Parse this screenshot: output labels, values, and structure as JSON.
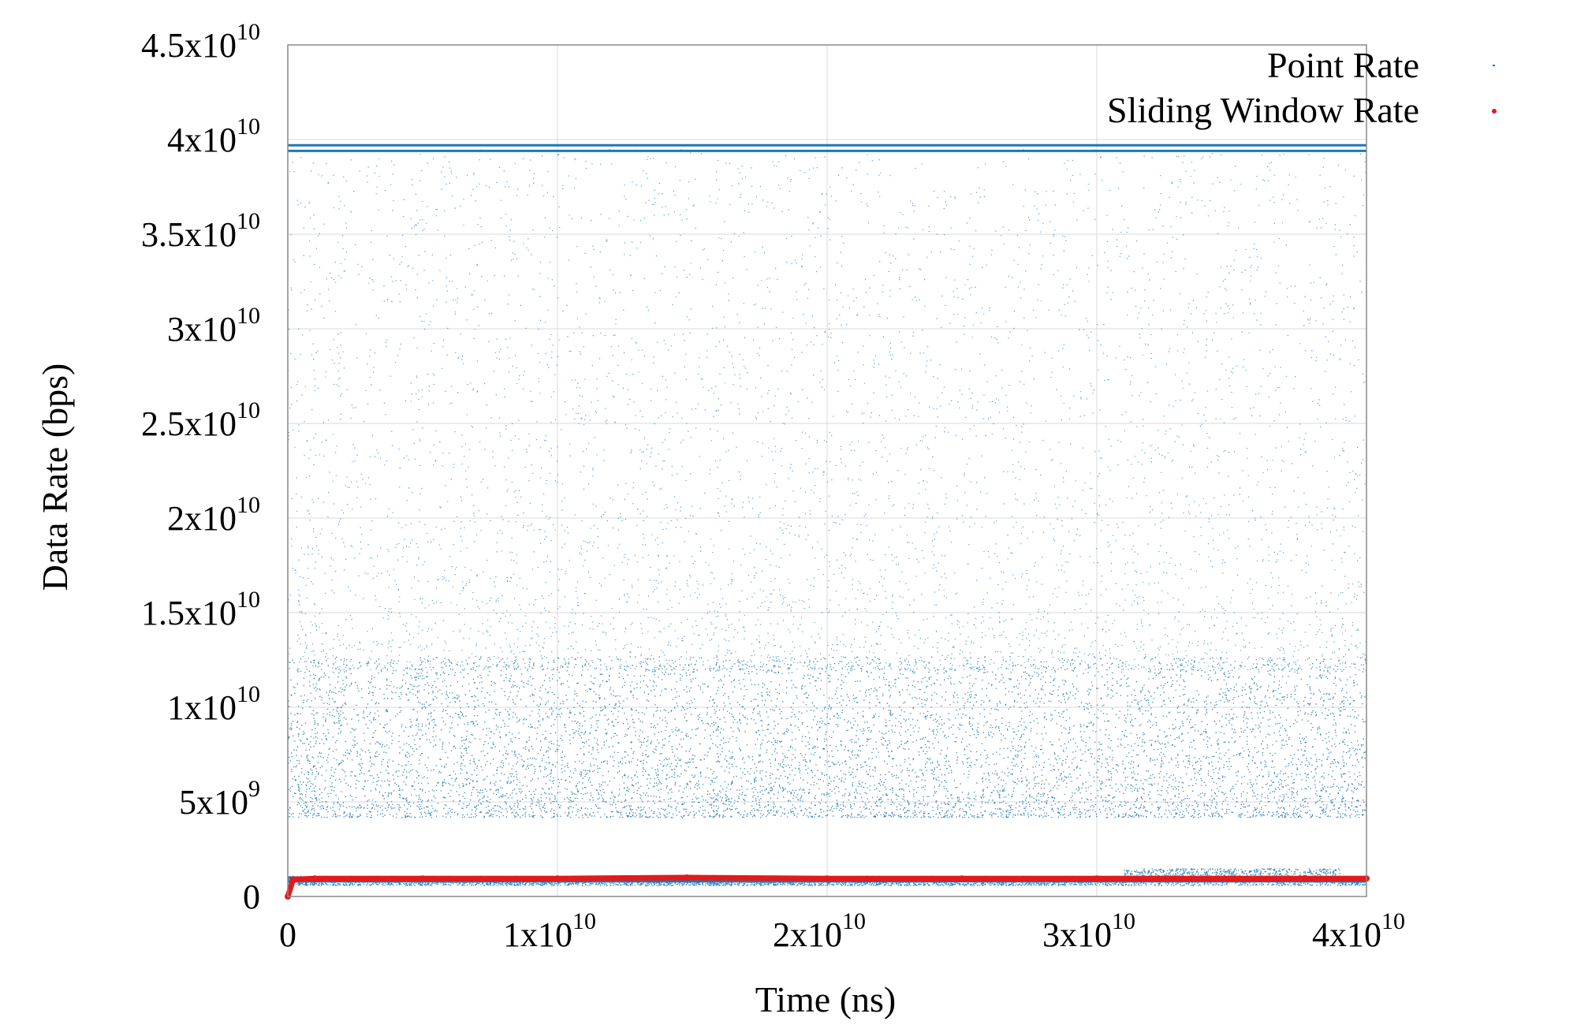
{
  "chart_data": {
    "type": "scatter",
    "title": "",
    "xlabel": "Time (ns)",
    "ylabel": "Data Rate (bps)",
    "xlim": [
      0,
      40000000000
    ],
    "ylim": [
      0,
      45000000000
    ],
    "grid": true,
    "legend_position": "top-right",
    "x_ticks": [
      {
        "value": 0,
        "mantissa": "0",
        "exp": ""
      },
      {
        "value": 10000000000,
        "mantissa": "1x10",
        "exp": "10"
      },
      {
        "value": 20000000000,
        "mantissa": "2x10",
        "exp": "10"
      },
      {
        "value": 30000000000,
        "mantissa": "3x10",
        "exp": "10"
      },
      {
        "value": 40000000000,
        "mantissa": "4x10",
        "exp": "10"
      }
    ],
    "y_ticks": [
      {
        "value": 0,
        "mantissa": "0",
        "exp": ""
      },
      {
        "value": 5000000000,
        "mantissa": "5x10",
        "exp": "9"
      },
      {
        "value": 10000000000,
        "mantissa": "1x10",
        "exp": "10"
      },
      {
        "value": 15000000000,
        "mantissa": "1.5x10",
        "exp": "10"
      },
      {
        "value": 20000000000,
        "mantissa": "2x10",
        "exp": "10"
      },
      {
        "value": 25000000000,
        "mantissa": "2.5x10",
        "exp": "10"
      },
      {
        "value": 30000000000,
        "mantissa": "3x10",
        "exp": "10"
      },
      {
        "value": 35000000000,
        "mantissa": "3.5x10",
        "exp": "10"
      },
      {
        "value": 40000000000,
        "mantissa": "4x10",
        "exp": "10"
      },
      {
        "value": 45000000000,
        "mantissa": "4.5x10",
        "exp": "10"
      }
    ],
    "series": [
      {
        "name": "Point Rate",
        "color": "#1f77b4",
        "marker": "dot",
        "description_of_distribution": {
          "dense_band": [
            4000000000,
            12000000000
          ],
          "sparse_upper_range": [
            12000000000,
            39500000000
          ],
          "bright_lines": [
            39700000000,
            39400000000,
            800000000,
            1000000000
          ]
        }
      },
      {
        "name": "Sliding Window Rate",
        "color": "#e31a1c",
        "marker": "dot",
        "x": [
          0,
          200000000,
          1000000000,
          5000000000,
          10000000000,
          14800000000,
          20000000000,
          25000000000,
          30000000000,
          35000000000,
          40000000000
        ],
        "y": [
          0,
          900000000,
          950000000,
          950000000,
          950000000,
          1000000000,
          950000000,
          950000000,
          950000000,
          950000000,
          950000000
        ]
      }
    ]
  }
}
